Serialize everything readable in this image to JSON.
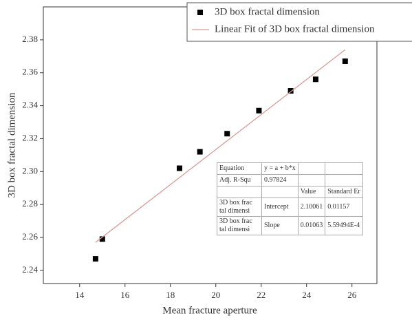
{
  "chart_data": {
    "type": "scatter",
    "x_label": "Mean fracture aperture",
    "y_label": "3D box fractal dimension",
    "xlim": [
      12.4,
      27.1
    ],
    "xticks": [
      14,
      16,
      18,
      20,
      22,
      24,
      26
    ],
    "ylim": [
      2.232,
      2.4
    ],
    "yticks": [
      2.24,
      2.26,
      2.28,
      {
        "value": 2.3,
        "label": "2.30"
      },
      2.32,
      2.34,
      2.36,
      2.38
    ],
    "grid": false,
    "legend_position": "top-right",
    "series": [
      {
        "name": "3D box fractal dimension",
        "mode": "markers",
        "color": "#000000",
        "x": [
          14.7,
          15.0,
          18.4,
          19.3,
          20.5,
          21.9,
          23.3,
          24.4,
          25.7
        ],
        "values": [
          2.247,
          2.259,
          2.302,
          2.312,
          2.323,
          2.337,
          2.349,
          2.356,
          2.367
        ]
      },
      {
        "name": "Linear Fit of 3D box fractal dimension",
        "mode": "line",
        "color": "#d99a9a",
        "x": [
          14.7,
          25.7
        ],
        "values": [
          2.257,
          2.374
        ]
      }
    ]
  },
  "fit_table": {
    "rows": [
      [
        "Equation",
        "y = a + b*x",
        null,
        null
      ],
      [
        "Adj. R-Squ",
        "0.97824",
        null,
        null
      ],
      [
        null,
        null,
        "Value",
        "Standard Er"
      ],
      [
        "3D box frac tal dimensi",
        "Intercept",
        "2.10061",
        "0.01157"
      ],
      [
        "3D box frac tal dimensi",
        "Slope",
        "0.01063",
        "5.59494E-4"
      ]
    ]
  }
}
